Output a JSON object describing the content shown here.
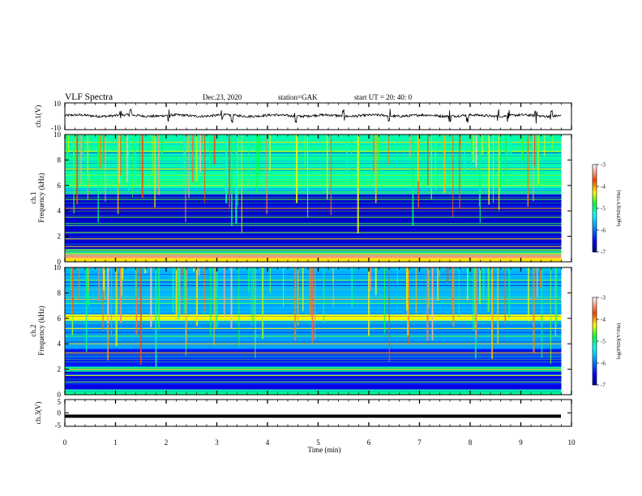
{
  "header": {
    "title": "VLF Spectra",
    "date": "Dec.23, 2020",
    "station": "station=GAK",
    "start": "start  UT =   20: 40: 0"
  },
  "colorbar": {
    "label": "log(PSD)(V²/Hz)",
    "ticks": [
      "-3",
      "-4",
      "-5",
      "-6",
      "-7"
    ]
  },
  "chart_data": [
    {
      "type": "line",
      "name": "ch1-waveform",
      "ylabel": "ch.1(V)",
      "ylim": [
        -10,
        10
      ],
      "yticks": [
        "10",
        "-10"
      ],
      "xlim": [
        0,
        10
      ],
      "baseline": 0.5,
      "spikes_min": [
        1.1,
        1.3,
        2.05,
        3.1,
        3.3,
        4.55,
        5.5,
        6.4,
        7.6,
        7.95,
        8.55,
        8.75,
        9.3,
        9.6
      ]
    },
    {
      "type": "heatmap",
      "name": "ch1-spectrogram",
      "ylabel": "ch.1\nFrequency (kHz)",
      "ylim": [
        0,
        10
      ],
      "yticks": [
        "0",
        "2",
        "4",
        "6",
        "8",
        "10"
      ],
      "xlim": [
        0,
        10
      ],
      "zlim": [
        -7,
        -3
      ],
      "bands_khz": [
        {
          "lo": 0.0,
          "hi": 0.3,
          "level": -4.2
        },
        {
          "lo": 0.3,
          "hi": 0.6,
          "level": -3.4
        },
        {
          "lo": 0.6,
          "hi": 1.0,
          "level": -4.6
        },
        {
          "lo": 1.0,
          "hi": 5.3,
          "level": -6.7
        },
        {
          "lo": 5.3,
          "hi": 5.7,
          "level": -5.7
        },
        {
          "lo": 5.7,
          "hi": 10.0,
          "level": -5.1
        }
      ],
      "lines_khz": [
        1.2,
        1.8,
        2.3,
        3.0,
        3.5,
        4.2,
        4.9,
        5.5,
        6.0,
        6.3,
        6.8,
        7.3,
        8.7,
        9.4
      ]
    },
    {
      "type": "heatmap",
      "name": "ch2-spectrogram",
      "ylabel": "ch.2\nFrequency (kHz)",
      "ylim": [
        0,
        10
      ],
      "yticks": [
        "0",
        "2",
        "4",
        "6",
        "8",
        "10"
      ],
      "xlim": [
        0,
        10
      ],
      "zlim": [
        -7,
        -3
      ],
      "bands_khz": [
        {
          "lo": 0.0,
          "hi": 0.4,
          "level": -5.0
        },
        {
          "lo": 0.4,
          "hi": 1.8,
          "level": -6.6
        },
        {
          "lo": 1.8,
          "hi": 2.2,
          "level": -5.0
        },
        {
          "lo": 2.2,
          "hi": 3.6,
          "level": -6.4
        },
        {
          "lo": 3.6,
          "hi": 5.8,
          "level": -5.8
        },
        {
          "lo": 5.8,
          "hi": 6.3,
          "level": -4.3
        },
        {
          "lo": 6.3,
          "hi": 10.0,
          "level": -5.7
        }
      ],
      "lines_khz": [
        1.0,
        1.5,
        2.0,
        3.3,
        4.0,
        4.6,
        5.2,
        6.1,
        7.5,
        9.0
      ]
    },
    {
      "type": "line",
      "name": "ch3-waveform",
      "ylabel": "ch.3(V)",
      "ylim": [
        -5,
        5
      ],
      "yticks": [
        "5",
        "0",
        "-5"
      ],
      "xlim": [
        0,
        10
      ],
      "value": -1.2
    }
  ],
  "xaxis": {
    "label": "Time  (min)",
    "ticks": [
      "0",
      "1",
      "2",
      "3",
      "4",
      "5",
      "6",
      "7",
      "8",
      "9",
      "10"
    ]
  }
}
